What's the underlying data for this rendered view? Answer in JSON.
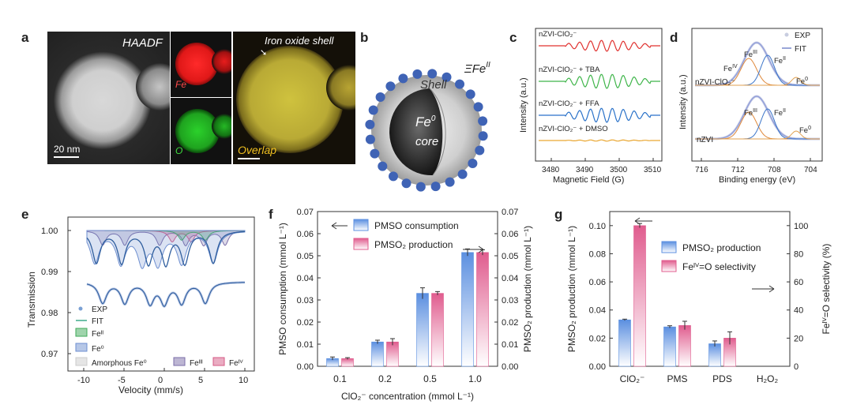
{
  "panel_letters": [
    "a",
    "b",
    "c",
    "d",
    "e",
    "f",
    "g"
  ],
  "panel_a": {
    "haadf_label": "HAADF",
    "scale_label": "20 nm",
    "fe_label": "Fe",
    "o_label": "O",
    "shell_label": "Iron oxide shell",
    "overlap_label": "Overlap",
    "colors": {
      "haadf_bg": "#1f1f1f",
      "fe": "#e41a1a",
      "o": "#1fb31f",
      "overlap": "#c9b838"
    }
  },
  "panel_b": {
    "shell_label": "Shell",
    "core_label_1": "Fe",
    "core_label_sup": "0",
    "core_label_2": "core",
    "surface_label": "ΞFe",
    "surface_sup": "II",
    "dot_color": "#3f63b5"
  },
  "panel_c": {
    "ylabel": "Intensity (a.u.)",
    "xlabel": "Magnetic Field (G)",
    "xticks": [
      "3480",
      "3490",
      "3500",
      "3510"
    ],
    "traces": [
      {
        "label": "nZVI-ClO₂⁻",
        "color": "#e0312f"
      },
      {
        "label": "nZVI-ClO₂⁻ + TBA",
        "color": "#3fb54a"
      },
      {
        "label": "nZVI-ClO₂⁻ + FFA",
        "color": "#2a72c9"
      },
      {
        "label": "nZVI-ClO₂⁻ + DMSO",
        "color": "#e9a630"
      }
    ]
  },
  "panel_d": {
    "ylabel": "Intensity (a.u.)",
    "xlabel": "Binding energy (eV)",
    "xticks": [
      "716",
      "712",
      "708",
      "704"
    ],
    "legend": [
      "EXP",
      "FIT"
    ],
    "top_label": "nZVI-ClO₂⁻",
    "bottom_label": "nZVI",
    "peaks_top": [
      "FeIV",
      "FeIII",
      "FeII",
      "Fe0"
    ],
    "peaks_bottom": [
      "FeIII",
      "FeII",
      "Fe0"
    ]
  },
  "panel_e": {
    "ylabel": "Transmission",
    "xlabel": "Velocity (mm/s)",
    "xticks": [
      "-10",
      "-5",
      "0",
      "5",
      "10"
    ],
    "yticks": [
      "1.00",
      "0.99",
      "0.98",
      "0.97"
    ],
    "legend": [
      "EXP",
      "FIT",
      "Feᴵᴵ",
      "Fe⁰",
      "Amorphous Fe⁰",
      "Feᴵᴵᴵ",
      "Feᴵⱽ"
    ],
    "colors": {
      "exp": "#7aa0d4",
      "fit": "#2f5e9e",
      "fe2": "#3faa5a",
      "fe0": "#6e8fd0",
      "fe3": "#7b6ea8",
      "fe4": "#d65a85"
    }
  },
  "chart_data": [
    {
      "type": "bar",
      "panel": "f",
      "categories": [
        "0.1",
        "0.2",
        "0.5",
        "1.0"
      ],
      "series": [
        {
          "name": "PMSO consumption",
          "values": [
            0.0035,
            0.011,
            0.033,
            0.0515
          ],
          "errors": [
            0.0007,
            0.0008,
            0.0025,
            0.0016
          ]
        },
        {
          "name": "PMSO₂ production",
          "values": [
            0.0035,
            0.011,
            0.033,
            0.0515
          ],
          "errors": [
            0.0004,
            0.0015,
            0.0008,
            0.0012
          ]
        }
      ],
      "xlabel": "ClO₂⁻ concentration (mmol L⁻¹)",
      "ylabel": "PMSO consumption (mmol L⁻¹)",
      "y2label": "PMSO₂ production (mmol L⁻¹)",
      "ylim": [
        0,
        0.07
      ],
      "yticks": [
        "0.00",
        "0.01",
        "0.02",
        "0.03",
        "0.04",
        "0.05",
        "0.06",
        "0.07"
      ],
      "colors": [
        "#5b8fe0",
        "#e05c8e"
      ]
    },
    {
      "type": "bar",
      "panel": "g",
      "categories": [
        "ClO₂⁻",
        "PMS",
        "PDS",
        "H₂O₂"
      ],
      "series": [
        {
          "name": "PMSO₂ production",
          "values": [
            0.033,
            0.028,
            0.016,
            0
          ],
          "errors": [
            0.0005,
            0.0008,
            0.002,
            0
          ]
        },
        {
          "name": "Feᴵⱽ=O selectivity",
          "values": [
            100,
            29,
            20,
            0
          ],
          "errors": [
            1.5,
            3,
            4.5,
            0
          ]
        }
      ],
      "xlabel": "",
      "ylabel": "PMSO₂ production (mmol L⁻¹)",
      "y2label": "Feᴵⱽ=O selectivity (%)",
      "ylim": [
        0,
        0.11
      ],
      "y2lim": [
        0,
        110
      ],
      "yticks": [
        "0.00",
        "0.02",
        "0.04",
        "0.06",
        "0.08",
        "0.10"
      ],
      "y2ticks": [
        "0",
        "20",
        "40",
        "60",
        "80",
        "100"
      ],
      "colors": [
        "#5b8fe0",
        "#e05c8e"
      ]
    }
  ]
}
